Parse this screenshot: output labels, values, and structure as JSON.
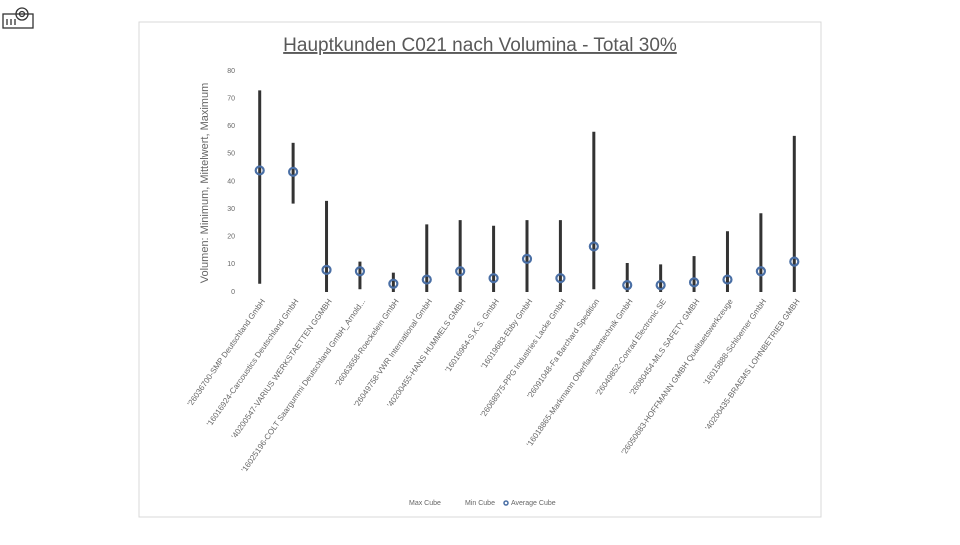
{
  "chart_data": {
    "type": "hi-lo",
    "title": "Hauptkunden C021 nach Volumina - Total 30%",
    "y_label": "Volumen: Minimum, Mittelwert, Maximum",
    "categories": [
      "'26036700-SMP Deutschland GmbH",
      "'16016924-Carcoustics Deutschland GmbH",
      "'40200547-VARIUS WERKSTAETTEN GGMBH",
      "'16025196-COLT Saargummi Deutschland GmbH_Arnold...",
      "'26063658-Roeckelein GmbH",
      "'26049758-VWR International GmbH",
      "'40200455-HANS HUMMELS GMBH",
      "'16016964-S.K.S. GmbH",
      "'16019683-Ebby GmbH",
      "'26068975-PPG Industries Lacke GmbH",
      "'26091048-Fa Barchard Spedition",
      "'16018865-Markmann Oberflaechentechnik GmbH",
      "'26049852-Conrad Electronic SE",
      "'26080454-MLS SAFETY GMBH",
      "'26050683-HOFFMANN GMBH Qualitaetswerkzeuge",
      "'16015888-Schloemer GmbH",
      "'40200435-BRAEMS LOHNBETRIEB GMBH"
    ],
    "series": [
      {
        "name": "Max Cube",
        "color": "#333333",
        "values": [
          73,
          54,
          33,
          11,
          7,
          24.5,
          26,
          24,
          26,
          26,
          58,
          10.5,
          10,
          13,
          22,
          28.5,
          56.5
        ]
      },
      {
        "name": "Min Cube",
        "color": "#333333",
        "values": [
          3,
          32,
          0,
          1,
          0,
          0,
          0,
          0,
          0,
          0,
          1,
          0,
          0,
          0,
          0,
          0,
          0
        ]
      },
      {
        "name": "Average Cube",
        "color": "#4a6fa5",
        "values": [
          44,
          43.5,
          8,
          7.5,
          3,
          4.5,
          7.5,
          5,
          12,
          5,
          16.5,
          2.5,
          2.5,
          3.5,
          4.5,
          7.5,
          11
        ]
      }
    ],
    "ylim": [
      0,
      80
    ],
    "yticks": [
      0,
      10,
      20,
      30,
      40,
      50,
      60,
      70,
      80
    ],
    "grid": false
  }
}
